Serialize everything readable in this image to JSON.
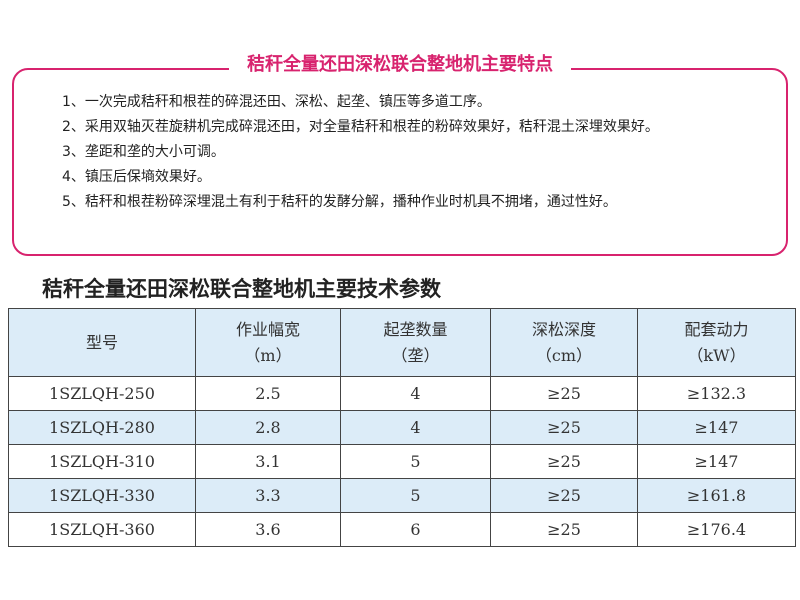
{
  "features_title": "秸秆全量还田深松联合整地机主要特点",
  "features": [
    "1、一次完成秸秆和根茬的碎混还田、深松、起垄、镇压等多道工序。",
    "2、采用双轴灭茬旋耕机完成碎混还田，对全量秸秆和根茬的粉碎效果好，秸秆混土深埋效果好。",
    "3、垄距和垄的大小可调。",
    "4、镇压后保墒效果好。",
    "5、秸秆和根茬粉碎深埋混土有利于秸秆的发酵分解，播种作业时机具不拥堵，通过性好。"
  ],
  "spec_title": "秸秆全量还田深松联合整地机主要技术参数",
  "table": {
    "headers": [
      {
        "label": "型号",
        "unit": ""
      },
      {
        "label": "作业幅宽",
        "unit": "（m）"
      },
      {
        "label": "起垄数量",
        "unit": "（垄）"
      },
      {
        "label": "深松深度",
        "unit": "（cm）"
      },
      {
        "label": "配套动力",
        "unit": "（kW）"
      }
    ],
    "rows": [
      [
        "1SZLQH-250",
        "2.5",
        "4",
        "≥25",
        "≥132.3"
      ],
      [
        "1SZLQH-280",
        "2.8",
        "4",
        "≥25",
        "≥147"
      ],
      [
        "1SZLQH-310",
        "3.1",
        "5",
        "≥25",
        "≥147"
      ],
      [
        "1SZLQH-330",
        "3.3",
        "5",
        "≥25",
        "≥161.8"
      ],
      [
        "1SZLQH-360",
        "3.6",
        "6",
        "≥25",
        "≥176.4"
      ]
    ]
  },
  "colors": {
    "accent": "#d8236e",
    "row_highlight": "#dcecf8"
  }
}
